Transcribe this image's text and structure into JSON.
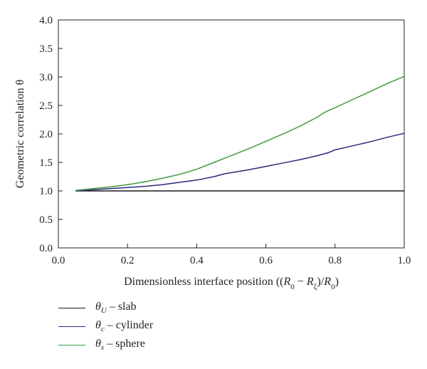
{
  "chart_data": {
    "type": "line",
    "title": "",
    "xlabel": "Dimensionless interface position ((R0 − Rξ)/R0)",
    "ylabel": "Geometric correlation θ",
    "xlim": [
      0.0,
      1.0
    ],
    "ylim": [
      0.0,
      4.0
    ],
    "x_ticks": [
      "0.0",
      "0.2",
      "0.4",
      "0.6",
      "0.8",
      "1.0"
    ],
    "y_ticks": [
      "0.0",
      "0.5",
      "1.0",
      "1.5",
      "2.0",
      "2.5",
      "3.0",
      "3.5",
      "4.0"
    ],
    "grid": false,
    "legend_position": "bottom-left-outside",
    "series": [
      {
        "name": "θU – slab",
        "name_parts": {
          "symbol": "θ",
          "sub": "U",
          "text": " – slab"
        },
        "color": "#1a1a1a",
        "x": [
          0.05,
          0.2,
          0.4,
          0.6,
          0.8,
          1.0
        ],
        "y": [
          1.0,
          1.0,
          1.0,
          1.0,
          1.0,
          1.0
        ]
      },
      {
        "name": "θc – cylinder",
        "name_parts": {
          "symbol": "θ",
          "sub": "c",
          "text": " – cylinder"
        },
        "color": "#2b2a7a",
        "x": [
          0.05,
          0.1,
          0.15,
          0.2,
          0.25,
          0.3,
          0.35,
          0.4,
          0.45,
          0.48,
          0.5,
          0.55,
          0.6,
          0.65,
          0.7,
          0.75,
          0.78,
          0.8,
          0.85,
          0.9,
          0.95,
          1.0
        ],
        "y": [
          1.0,
          1.02,
          1.04,
          1.06,
          1.08,
          1.11,
          1.15,
          1.19,
          1.25,
          1.3,
          1.32,
          1.37,
          1.43,
          1.49,
          1.55,
          1.62,
          1.67,
          1.72,
          1.79,
          1.86,
          1.94,
          2.01
        ]
      },
      {
        "name": "θs – sphere",
        "name_parts": {
          "symbol": "θ",
          "sub": "s",
          "text": " – sphere"
        },
        "color": "#3f9a3f",
        "x": [
          0.05,
          0.1,
          0.15,
          0.2,
          0.25,
          0.3,
          0.35,
          0.4,
          0.45,
          0.5,
          0.55,
          0.6,
          0.65,
          0.7,
          0.75,
          0.77,
          0.8,
          0.85,
          0.9,
          0.95,
          1.0
        ],
        "y": [
          1.01,
          1.04,
          1.07,
          1.11,
          1.16,
          1.22,
          1.29,
          1.38,
          1.5,
          1.62,
          1.74,
          1.87,
          2.0,
          2.14,
          2.3,
          2.38,
          2.46,
          2.6,
          2.74,
          2.88,
          3.01
        ]
      }
    ]
  }
}
